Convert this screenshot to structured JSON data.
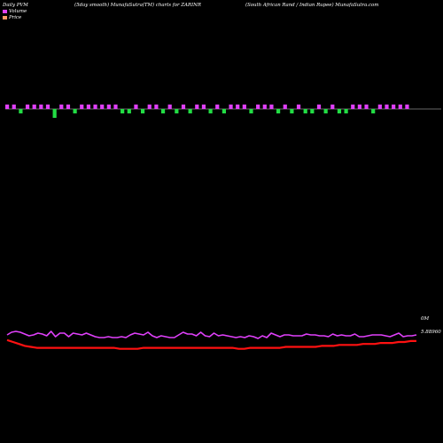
{
  "header": {
    "left": "Daily PVM",
    "center": "(5day smooth) MunafaSutra(TM) charts for ZARINR",
    "right": "(South African Rand / Indian Rupee) MunafaSutra.com"
  },
  "legend": [
    {
      "label": "Volume",
      "color": "#e040fb"
    },
    {
      "label": "Price",
      "color": "#ff9966"
    }
  ],
  "chart_data": {
    "type": "line",
    "colors": {
      "volume_up": "#e040fb",
      "volume_down": "#22dd44",
      "volume_line": "#e040fb",
      "price_line": "#ff1111",
      "baseline": "#cccccc"
    },
    "volume_bars": [
      1,
      1,
      -1,
      1,
      1,
      1,
      1,
      -2,
      1,
      1,
      -1,
      1,
      1,
      1,
      1,
      1,
      1,
      -1,
      -1,
      1,
      -1,
      1,
      1,
      -1,
      1,
      -1,
      1,
      -1,
      1,
      1,
      -1,
      1,
      -1,
      1,
      1,
      1,
      -1,
      1,
      1,
      1,
      -1,
      1,
      -1,
      1,
      -1,
      -1,
      1,
      -1,
      1,
      -1,
      -1,
      1,
      1,
      1,
      -1,
      1,
      1,
      1,
      1,
      1
    ],
    "volume_line": [
      52,
      55,
      56,
      55,
      53,
      51,
      52,
      54,
      53,
      51,
      56,
      50,
      54,
      54,
      50,
      54,
      53,
      52,
      54,
      52,
      50,
      49,
      49,
      50,
      49,
      49,
      50,
      49,
      52,
      54,
      53,
      52,
      55,
      51,
      49,
      51,
      50,
      49,
      49,
      52,
      55,
      53,
      53,
      51,
      55,
      51,
      50,
      54,
      51,
      52,
      51,
      50,
      49,
      50,
      49,
      51,
      50,
      48,
      51,
      49,
      54,
      52,
      50,
      52,
      52,
      51,
      51,
      51,
      53,
      52,
      52,
      51,
      51,
      50,
      53,
      51,
      52,
      51,
      51,
      53,
      50,
      50,
      51,
      52,
      52,
      52,
      51,
      50,
      52,
      54,
      50,
      51,
      51,
      52
    ],
    "price_line": [
      12,
      10,
      8,
      6,
      5,
      4,
      4,
      4,
      4,
      4,
      4,
      4,
      4,
      4,
      4,
      4,
      4,
      4,
      4,
      3,
      3,
      3,
      3,
      4,
      4,
      4,
      4,
      4,
      4,
      4,
      4,
      4,
      4,
      4,
      4,
      4,
      4,
      4,
      4,
      3,
      3,
      4,
      4,
      4,
      4,
      4,
      4,
      5,
      5,
      5,
      5,
      5,
      5,
      6,
      6,
      6,
      7,
      7,
      7,
      7,
      8,
      8,
      8,
      9,
      9,
      9,
      10,
      10,
      11,
      11
    ],
    "price_label": "5.88960",
    "volume_label": "0M"
  }
}
